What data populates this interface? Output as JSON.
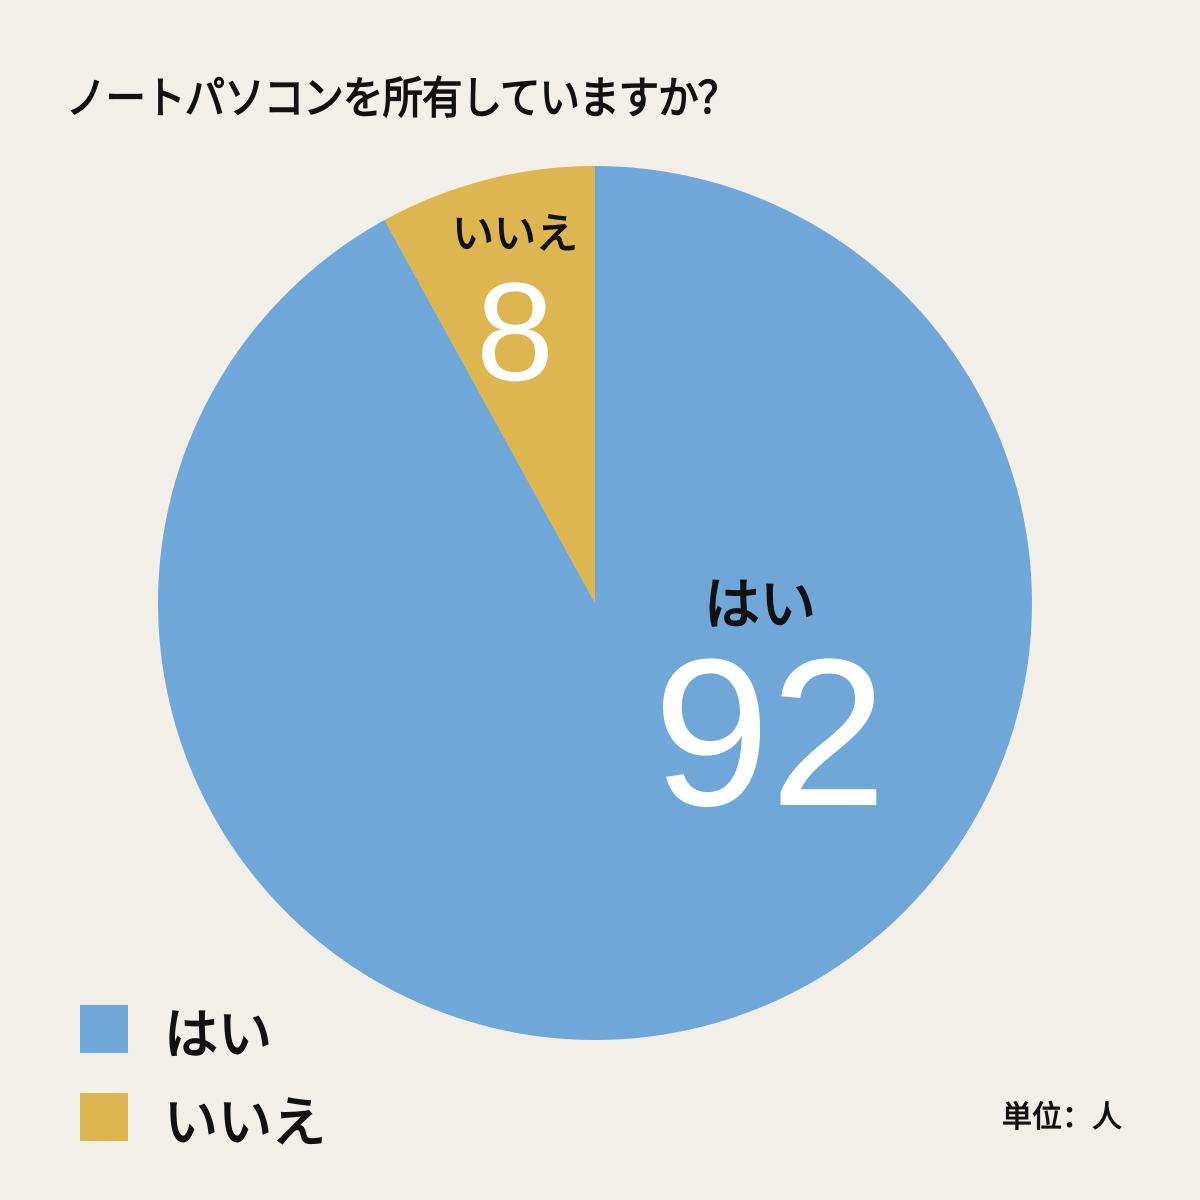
{
  "chart_data": {
    "type": "pie",
    "title": "ノートパソコンを所有していますか？",
    "categories": [
      "はい",
      "いいえ"
    ],
    "values": [
      92,
      8
    ],
    "colors": [
      "#6fa7d9",
      "#deb651"
    ],
    "unit": "単位：人",
    "legend_position": "bottom-left",
    "start_angle_deg": 0,
    "direction": "clockwise"
  },
  "title": "ノートパソコンを所有していますか？",
  "slices": [
    {
      "label": "はい",
      "value": "92",
      "color": "#6fa7d9"
    },
    {
      "label": "いいえ",
      "value": "8",
      "color": "#deb651"
    }
  ],
  "legend": [
    {
      "label": "はい",
      "color": "#6fa7d9"
    },
    {
      "label": "いいえ",
      "color": "#deb651"
    }
  ],
  "unit_label": "単位：人"
}
